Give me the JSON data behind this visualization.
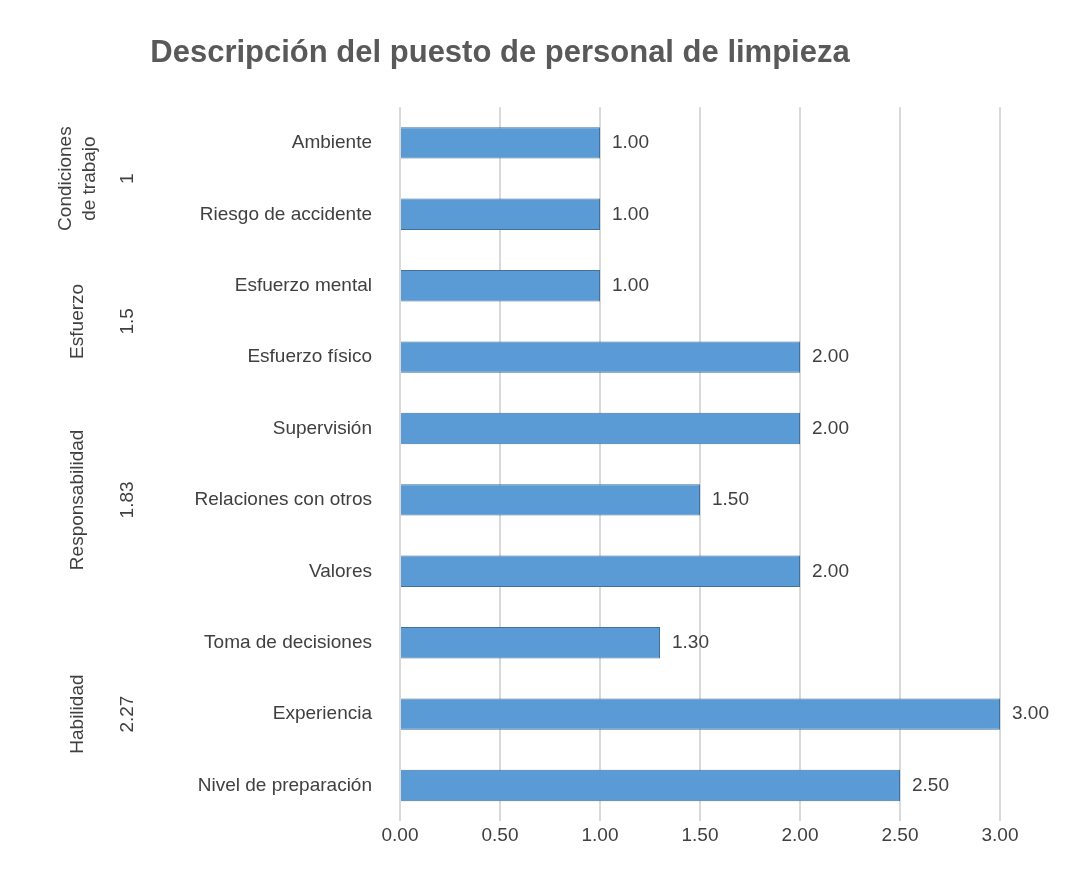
{
  "chart_data": {
    "type": "bar",
    "orientation": "horizontal",
    "title": "Descripción del puesto de personal de limpieza",
    "categories": [
      "Ambiente",
      "Riesgo de accidente",
      "Esfuerzo mental",
      "Esfuerzo físico",
      "Supervisión",
      "Relaciones con otros",
      "Valores",
      "Toma de decisiones",
      "Experiencia",
      "Nivel de preparación"
    ],
    "values": [
      1,
      1,
      1,
      2,
      2,
      1.5,
      2,
      1.3,
      3,
      2.5
    ],
    "value_labels": [
      "1.00",
      "1.00",
      "1.00",
      "2.00",
      "2.00",
      "1.50",
      "2.00",
      "1.30",
      "3.00",
      "2.50"
    ],
    "color": "#5b9bd5",
    "xlim": [
      0,
      3
    ],
    "xticks": [
      {
        "value": 0,
        "label": "0.00"
      },
      {
        "value": 0.5,
        "label": "0.50"
      },
      {
        "value": 1,
        "label": "1.00"
      },
      {
        "value": 1.5,
        "label": "1.50"
      },
      {
        "value": 2,
        "label": "2.00"
      },
      {
        "value": 2.5,
        "label": "2.50"
      },
      {
        "value": 3,
        "label": "3.00"
      }
    ],
    "grid": "x",
    "legend": false,
    "annotations": [
      "Condiciones de trabajo",
      "1",
      "Esfuerzo",
      "1.5",
      "Responsabilidad",
      "1.83",
      "Habilidad",
      "2.27"
    ]
  }
}
